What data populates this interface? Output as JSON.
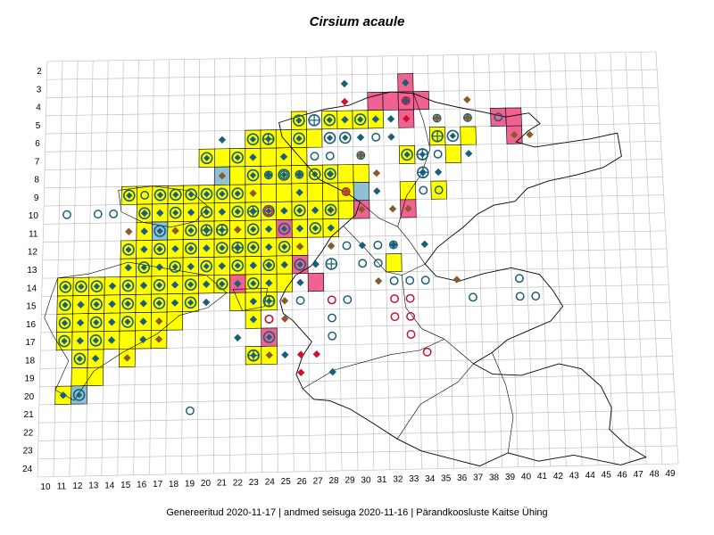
{
  "title": "Cirsium acaule",
  "footer": "Genereeritud 2020-11-17  |  andmed seisuga 2020-11-16  |  Pärandkoosluste Kaitse Ühing",
  "grid": {
    "col_labels": [
      "10",
      "11",
      "12",
      "13",
      "14",
      "15",
      "16",
      "17",
      "18",
      "19",
      "20",
      "21",
      "22",
      "23",
      "24",
      "25",
      "26",
      "27",
      "28",
      "29",
      "30",
      "31",
      "32",
      "33",
      "34",
      "35",
      "36",
      "37",
      "38",
      "39",
      "40",
      "41",
      "42",
      "43",
      "44",
      "45",
      "46",
      "47",
      "48",
      "49"
    ],
    "row_labels": [
      "2",
      "3",
      "4",
      "5",
      "6",
      "7",
      "8",
      "9",
      "10",
      "11",
      "12",
      "13",
      "14",
      "15",
      "16",
      "17",
      "18",
      "19",
      "20",
      "21",
      "22",
      "23",
      "24"
    ]
  },
  "colors": {
    "yellow_cell": "#ffff00",
    "pink_cell": "#f06292",
    "blue_cell": "#8fc1d6",
    "diamond_blue": "#1a5f7a",
    "diamond_brown": "#8b5a2b",
    "diamond_red": "#cc1133",
    "circle_blue": "#1a5f7a",
    "circle_red": "#cc1133",
    "grid": "#b8b8b8",
    "border": "#000000"
  },
  "chart_data": {
    "type": "distribution_grid_map",
    "cells_yellow": [
      [
        11,
        14
      ],
      [
        12,
        14
      ],
      [
        13,
        14
      ],
      [
        14,
        14
      ],
      [
        15,
        14
      ],
      [
        16,
        14
      ],
      [
        17,
        14
      ],
      [
        18,
        14
      ],
      [
        19,
        14
      ],
      [
        20,
        14
      ],
      [
        21,
        14
      ],
      [
        22,
        14
      ],
      [
        23,
        14
      ],
      [
        24,
        14
      ],
      [
        25,
        14
      ],
      [
        11,
        15
      ],
      [
        12,
        15
      ],
      [
        13,
        15
      ],
      [
        14,
        15
      ],
      [
        15,
        15
      ],
      [
        16,
        15
      ],
      [
        17,
        15
      ],
      [
        18,
        15
      ],
      [
        19,
        15
      ],
      [
        11,
        16
      ],
      [
        12,
        16
      ],
      [
        13,
        16
      ],
      [
        14,
        16
      ],
      [
        15,
        16
      ],
      [
        16,
        16
      ],
      [
        17,
        16
      ],
      [
        18,
        16
      ],
      [
        11,
        17
      ],
      [
        12,
        17
      ],
      [
        13,
        17
      ],
      [
        14,
        17
      ],
      [
        15,
        17
      ],
      [
        16,
        17
      ],
      [
        17,
        17
      ],
      [
        12,
        18
      ],
      [
        13,
        18
      ],
      [
        15,
        18
      ],
      [
        12,
        19
      ],
      [
        13,
        19
      ],
      [
        11,
        20
      ],
      [
        15,
        9
      ],
      [
        16,
        9
      ],
      [
        17,
        9
      ],
      [
        18,
        9
      ],
      [
        19,
        9
      ],
      [
        20,
        9
      ],
      [
        21,
        9
      ],
      [
        22,
        9
      ],
      [
        23,
        9
      ],
      [
        24,
        9
      ],
      [
        25,
        9
      ],
      [
        16,
        10
      ],
      [
        17,
        10
      ],
      [
        18,
        10
      ],
      [
        19,
        10
      ],
      [
        20,
        10
      ],
      [
        21,
        10
      ],
      [
        22,
        10
      ],
      [
        23,
        10
      ],
      [
        24,
        10
      ],
      [
        25,
        10
      ],
      [
        26,
        10
      ],
      [
        27,
        10
      ],
      [
        28,
        10
      ],
      [
        29,
        10
      ],
      [
        16,
        11
      ],
      [
        17,
        11
      ],
      [
        18,
        11
      ],
      [
        19,
        11
      ],
      [
        20,
        11
      ],
      [
        21,
        11
      ],
      [
        22,
        11
      ],
      [
        23,
        11
      ],
      [
        24,
        11
      ],
      [
        26,
        11
      ],
      [
        27,
        11
      ],
      [
        28,
        11
      ],
      [
        15,
        12
      ],
      [
        16,
        12
      ],
      [
        17,
        12
      ],
      [
        18,
        12
      ],
      [
        19,
        12
      ],
      [
        20,
        12
      ],
      [
        21,
        12
      ],
      [
        22,
        12
      ],
      [
        23,
        12
      ],
      [
        24,
        12
      ],
      [
        25,
        12
      ],
      [
        26,
        12
      ],
      [
        15,
        13
      ],
      [
        16,
        13
      ],
      [
        17,
        13
      ],
      [
        18,
        13
      ],
      [
        19,
        13
      ],
      [
        20,
        13
      ],
      [
        21,
        13
      ],
      [
        22,
        13
      ],
      [
        23,
        13
      ],
      [
        24,
        13
      ],
      [
        25,
        13
      ],
      [
        22,
        15
      ],
      [
        23,
        15
      ],
      [
        24,
        15
      ],
      [
        23,
        16
      ],
      [
        23,
        18
      ],
      [
        24,
        18
      ],
      [
        20,
        7
      ],
      [
        21,
        7
      ],
      [
        22,
        7
      ],
      [
        23,
        7
      ],
      [
        24,
        7
      ],
      [
        25,
        7
      ],
      [
        26,
        7
      ],
      [
        23,
        6
      ],
      [
        24,
        6
      ],
      [
        25,
        6
      ],
      [
        26,
        6
      ],
      [
        27,
        6
      ],
      [
        26,
        5
      ],
      [
        28,
        5
      ],
      [
        29,
        5
      ],
      [
        30,
        5
      ],
      [
        31,
        5
      ],
      [
        22,
        8
      ],
      [
        23,
        8
      ],
      [
        24,
        8
      ],
      [
        25,
        8
      ],
      [
        26,
        8
      ],
      [
        27,
        8
      ],
      [
        28,
        8
      ],
      [
        29,
        8
      ],
      [
        30,
        8
      ],
      [
        24,
        9
      ],
      [
        26,
        9
      ],
      [
        27,
        9
      ],
      [
        28,
        9
      ],
      [
        29,
        9
      ],
      [
        33,
        7
      ],
      [
        36,
        7
      ],
      [
        33,
        9
      ],
      [
        35,
        9
      ],
      [
        32,
        13
      ],
      [
        35,
        6
      ],
      [
        37,
        6
      ]
    ],
    "cells_pink": [
      [
        31,
        4
      ],
      [
        32,
        4
      ],
      [
        33,
        4
      ],
      [
        34,
        4
      ],
      [
        33,
        3
      ],
      [
        33,
        5
      ],
      [
        39,
        5
      ],
      [
        40,
        5
      ],
      [
        40,
        6
      ],
      [
        25,
        11
      ],
      [
        30,
        10
      ],
      [
        33,
        10
      ],
      [
        26,
        13
      ],
      [
        27,
        14
      ],
      [
        22,
        14
      ],
      [
        24,
        17
      ]
    ],
    "cells_blue": [
      [
        21,
        8
      ],
      [
        30,
        9
      ],
      [
        17,
        11
      ],
      [
        12,
        20
      ]
    ],
    "diamond_blue": [
      [
        14,
        14
      ],
      [
        16,
        14
      ],
      [
        18,
        14
      ],
      [
        20,
        14
      ],
      [
        22,
        14
      ],
      [
        24,
        14
      ],
      [
        12,
        15
      ],
      [
        14,
        15
      ],
      [
        16,
        15
      ],
      [
        18,
        15
      ],
      [
        12,
        16
      ],
      [
        14,
        16
      ],
      [
        16,
        16
      ],
      [
        12,
        17
      ],
      [
        14,
        17
      ],
      [
        16,
        17
      ],
      [
        13,
        18
      ],
      [
        11,
        20
      ],
      [
        16,
        12
      ],
      [
        18,
        12
      ],
      [
        20,
        12
      ],
      [
        22,
        12
      ],
      [
        24,
        12
      ],
      [
        26,
        12
      ],
      [
        15,
        13
      ],
      [
        17,
        13
      ],
      [
        19,
        13
      ],
      [
        21,
        13
      ],
      [
        23,
        13
      ],
      [
        25,
        13
      ],
      [
        17,
        10
      ],
      [
        19,
        10
      ],
      [
        21,
        10
      ],
      [
        23,
        10
      ],
      [
        25,
        10
      ],
      [
        27,
        10
      ],
      [
        16,
        11
      ],
      [
        18,
        11
      ],
      [
        20,
        11
      ],
      [
        22,
        11
      ],
      [
        24,
        11
      ],
      [
        26,
        11
      ],
      [
        28,
        11
      ],
      [
        21,
        6
      ],
      [
        23,
        7
      ],
      [
        25,
        7
      ],
      [
        24,
        8
      ],
      [
        26,
        8
      ],
      [
        28,
        8
      ],
      [
        29,
        5
      ],
      [
        31,
        5
      ],
      [
        30,
        6
      ],
      [
        32,
        6
      ],
      [
        33,
        4
      ],
      [
        32,
        5
      ],
      [
        34,
        8
      ],
      [
        31,
        9
      ],
      [
        35,
        8
      ],
      [
        37,
        7
      ],
      [
        33,
        3
      ],
      [
        29,
        3
      ],
      [
        26,
        9
      ],
      [
        32,
        12
      ],
      [
        34,
        12
      ],
      [
        30,
        12
      ],
      [
        28,
        12
      ],
      [
        27,
        13
      ],
      [
        26,
        14
      ],
      [
        23,
        16
      ],
      [
        25,
        18
      ],
      [
        28,
        19
      ],
      [
        22,
        17
      ],
      [
        20,
        15
      ],
      [
        23,
        15
      ]
    ],
    "diamond_brown": [
      [
        16,
        10
      ],
      [
        15,
        11
      ],
      [
        18,
        11
      ],
      [
        21,
        8
      ],
      [
        15,
        18
      ],
      [
        17,
        16
      ],
      [
        17,
        17
      ],
      [
        22,
        11
      ],
      [
        23,
        9
      ],
      [
        24,
        13
      ],
      [
        25,
        15
      ],
      [
        25,
        16
      ],
      [
        24,
        18
      ],
      [
        30,
        10
      ],
      [
        32,
        10
      ],
      [
        31,
        8
      ],
      [
        33,
        10
      ],
      [
        28,
        10
      ],
      [
        29,
        9
      ],
      [
        30,
        7
      ],
      [
        35,
        5
      ],
      [
        37,
        4
      ],
      [
        37,
        5
      ],
      [
        40,
        6
      ],
      [
        41,
        6
      ],
      [
        36,
        14
      ],
      [
        31,
        14
      ],
      [
        26,
        12
      ],
      [
        28,
        12
      ]
    ],
    "diamond_red": [
      [
        29,
        4
      ],
      [
        33,
        5
      ],
      [
        26,
        18
      ],
      [
        27,
        18
      ],
      [
        26,
        19
      ]
    ],
    "circle_blue": [
      [
        11,
        10
      ],
      [
        13,
        10
      ],
      [
        14,
        10
      ],
      [
        16,
        9
      ],
      [
        24,
        16
      ],
      [
        28,
        7
      ],
      [
        30,
        7
      ],
      [
        31,
        6
      ],
      [
        35,
        7
      ],
      [
        35,
        9
      ],
      [
        34,
        9
      ],
      [
        26,
        8
      ],
      [
        27,
        7
      ],
      [
        35,
        5
      ],
      [
        37,
        5
      ],
      [
        39,
        5
      ],
      [
        32,
        12
      ],
      [
        29,
        12
      ],
      [
        31,
        12
      ],
      [
        30,
        13
      ],
      [
        31,
        13
      ],
      [
        32,
        14
      ],
      [
        33,
        14
      ],
      [
        29,
        15
      ],
      [
        28,
        17
      ],
      [
        19,
        21
      ],
      [
        34,
        14
      ],
      [
        28,
        16
      ],
      [
        40,
        14
      ],
      [
        41,
        15
      ],
      [
        40,
        15
      ],
      [
        37,
        15
      ],
      [
        25,
        8
      ],
      [
        24,
        8
      ],
      [
        26,
        15
      ]
    ],
    "circle_red": [
      [
        24,
        10
      ],
      [
        24,
        16
      ],
      [
        28,
        15
      ],
      [
        32,
        15
      ],
      [
        32,
        16
      ],
      [
        33,
        16
      ],
      [
        33,
        17
      ],
      [
        33,
        15
      ],
      [
        34,
        18
      ],
      [
        29,
        9
      ],
      [
        33,
        4
      ]
    ],
    "circle_diamond": [
      [
        11,
        14
      ],
      [
        12,
        14
      ],
      [
        13,
        14
      ],
      [
        15,
        14
      ],
      [
        17,
        14
      ],
      [
        19,
        14
      ],
      [
        21,
        14
      ],
      [
        23,
        14
      ],
      [
        11,
        15
      ],
      [
        13,
        15
      ],
      [
        15,
        15
      ],
      [
        17,
        15
      ],
      [
        19,
        15
      ],
      [
        11,
        16
      ],
      [
        13,
        16
      ],
      [
        15,
        16
      ],
      [
        11,
        17
      ],
      [
        13,
        17
      ],
      [
        12,
        18
      ],
      [
        12,
        20
      ],
      [
        15,
        9
      ],
      [
        17,
        9
      ],
      [
        18,
        9
      ],
      [
        19,
        9
      ],
      [
        20,
        9
      ],
      [
        21,
        9
      ],
      [
        22,
        9
      ],
      [
        16,
        10
      ],
      [
        18,
        10
      ],
      [
        20,
        10
      ],
      [
        22,
        10
      ],
      [
        24,
        10
      ],
      [
        26,
        10
      ],
      [
        28,
        10
      ],
      [
        17,
        11
      ],
      [
        19,
        11
      ],
      [
        21,
        11
      ],
      [
        23,
        11
      ],
      [
        25,
        11
      ],
      [
        27,
        11
      ],
      [
        15,
        12
      ],
      [
        17,
        12
      ],
      [
        19,
        12
      ],
      [
        21,
        12
      ],
      [
        23,
        12
      ],
      [
        25,
        12
      ],
      [
        16,
        13
      ],
      [
        18,
        13
      ],
      [
        20,
        13
      ],
      [
        22,
        13
      ],
      [
        24,
        13
      ],
      [
        20,
        7
      ],
      [
        22,
        7
      ],
      [
        23,
        6
      ],
      [
        24,
        6
      ],
      [
        26,
        6
      ],
      [
        28,
        6
      ],
      [
        29,
        6
      ],
      [
        23,
        8
      ],
      [
        25,
        8
      ],
      [
        27,
        8
      ],
      [
        28,
        8
      ],
      [
        26,
        5
      ],
      [
        28,
        5
      ],
      [
        30,
        5
      ],
      [
        33,
        7
      ],
      [
        34,
        7
      ],
      [
        36,
        6
      ],
      [
        23,
        18
      ],
      [
        24,
        17
      ],
      [
        24,
        15
      ],
      [
        26,
        13
      ]
    ],
    "circle_cross": [
      [
        24,
        6
      ],
      [
        35,
        6
      ],
      [
        34,
        7
      ],
      [
        27,
        5
      ],
      [
        23,
        10
      ],
      [
        20,
        11
      ],
      [
        21,
        11
      ],
      [
        22,
        12
      ],
      [
        24,
        15
      ],
      [
        28,
        13
      ],
      [
        23,
        18
      ],
      [
        34,
        8
      ]
    ]
  }
}
